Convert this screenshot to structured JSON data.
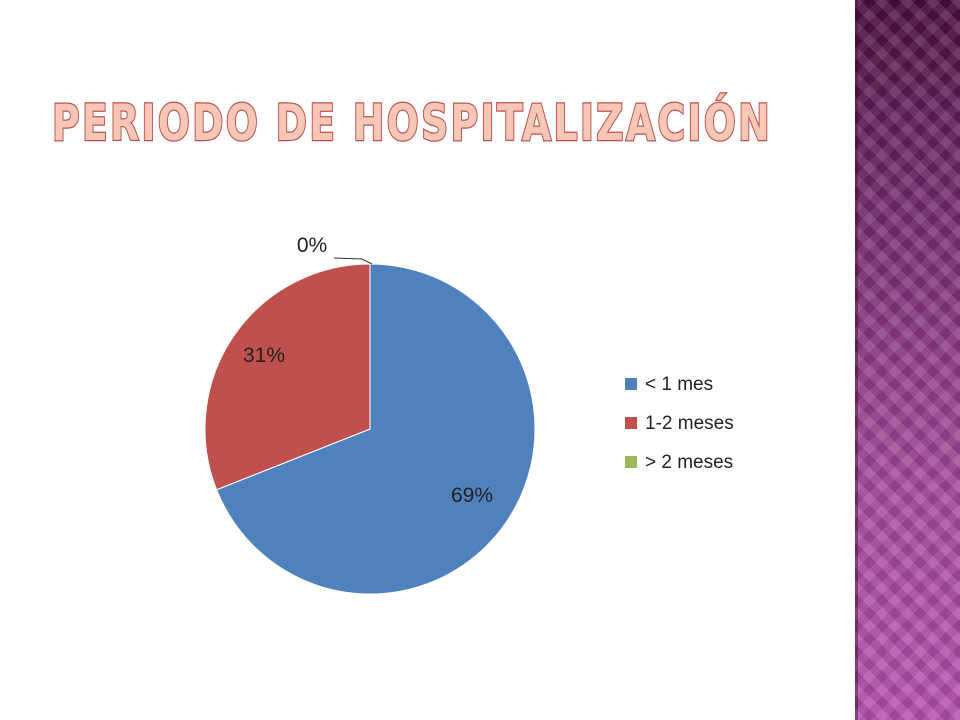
{
  "slide": {
    "title": "PERIODO DE HOSPITALIZACIÓN",
    "title_color": "#f6c7b7",
    "title_stroke": "#c0504d"
  },
  "chart_data": {
    "type": "pie",
    "title": "",
    "categories": [
      "< 1 mes",
      "1-2 meses",
      "> 2 meses"
    ],
    "values": [
      69,
      31,
      0
    ],
    "data_labels": [
      "69%",
      "31%",
      "0%"
    ],
    "colors": [
      "#4f81bd",
      "#c0504d",
      "#9bbb59"
    ],
    "legend_position": "right"
  }
}
